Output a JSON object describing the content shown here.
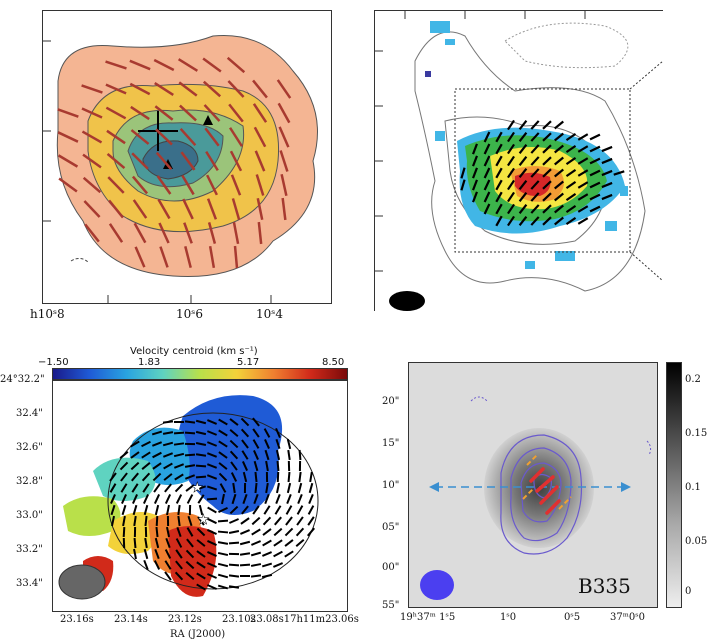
{
  "panels": {
    "top_left": {
      "x_ticks": [
        "h10ˢ8",
        "10ˢ6",
        "10ˢ4"
      ],
      "colors": {
        "outer": "#f4b593",
        "mid": "#f0c34a",
        "inner": "#4a8c8c",
        "vector": "#c0504d"
      }
    },
    "top_right": {
      "colors": {
        "blue": "#41b6e6",
        "green": "#3cb44b",
        "yellow": "#f5e642",
        "red": "#d62728"
      }
    },
    "bottom_left": {
      "colorbar_title": "Velocity centroid (km s⁻¹)",
      "colorbar_ticks": [
        "−1.50",
        "1.83",
        "5.17",
        "8.50"
      ],
      "y_ticks": [
        "24°32.2\"",
        "32.4\"",
        "32.6\"",
        "32.8\"",
        "33.0\"",
        "33.2\"",
        "33.4\""
      ],
      "x_ticks": [
        "23.16s",
        "23.14s",
        "23.12s",
        "23.10s",
        "23.08s17h11m23.06s"
      ],
      "x_label": "RA (J2000)"
    },
    "bottom_right": {
      "label": "B335",
      "y_ticks": [
        "20\"",
        "15\"",
        "10\"",
        "05\"",
        "00\"",
        "55\""
      ],
      "x_ticks": [
        "19ʰ37ᵐ 1ˢ5",
        "1ˢ0",
        "0ˢ5",
        "37ᵐ0ˢ0"
      ],
      "colorbar_ticks": [
        "0.2",
        "0.15",
        "0.1",
        "0.05",
        "0"
      ]
    }
  }
}
